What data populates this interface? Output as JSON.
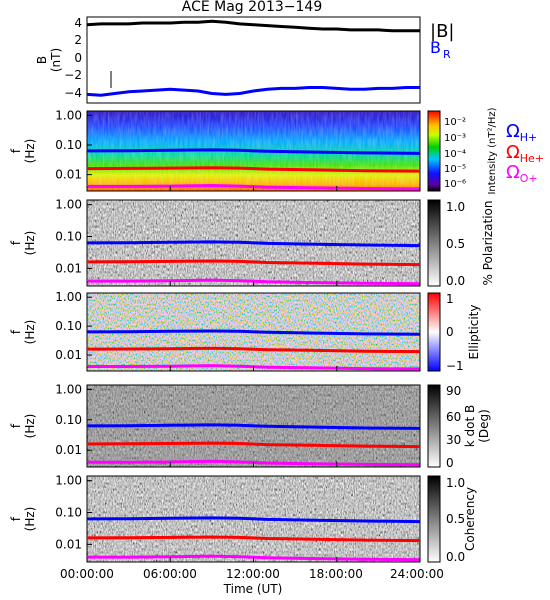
{
  "title": "ACE Mag 2013−149",
  "xlabel": "Time (UT)",
  "x_ticks": [
    "00:00:00",
    "06:00:00",
    "12:00:00",
    "18:00:00",
    "24:00:00"
  ],
  "chart_data": [
    {
      "type": "line",
      "panel": "B",
      "ylabel_main": "B",
      "ylabel_unit": "(nT)",
      "ylim": [
        -5,
        5
      ],
      "y_ticks": [
        "4",
        "2",
        "0",
        "−2",
        "−4"
      ],
      "x_range_hours": [
        0,
        24
      ],
      "series": [
        {
          "name": "|B|",
          "color": "#000000",
          "x": [
            0,
            1,
            2,
            3,
            4,
            5,
            6,
            7,
            8,
            9,
            10,
            11,
            12,
            13,
            14,
            15,
            16,
            17,
            18,
            19,
            20,
            21,
            22,
            23,
            24
          ],
          "values": [
            4.1,
            4.2,
            4.2,
            4.2,
            4.3,
            4.3,
            4.3,
            4.4,
            4.4,
            4.5,
            4.4,
            4.2,
            4.1,
            4.0,
            3.9,
            3.8,
            3.7,
            3.6,
            3.6,
            3.5,
            3.5,
            3.5,
            3.4,
            3.4,
            3.4
          ]
        },
        {
          "name": "B_R",
          "color": "#0000ff",
          "x": [
            0,
            1,
            2,
            3,
            4,
            5,
            6,
            7,
            8,
            9,
            10,
            11,
            12,
            13,
            14,
            15,
            16,
            17,
            18,
            19,
            20,
            21,
            22,
            23,
            24
          ],
          "values": [
            -4.0,
            -4.1,
            -3.9,
            -3.7,
            -3.6,
            -3.5,
            -3.4,
            -3.5,
            -3.6,
            -3.9,
            -4.0,
            -3.9,
            -3.6,
            -3.4,
            -3.3,
            -3.3,
            -3.2,
            -3.2,
            -3.3,
            -3.4,
            -3.4,
            -3.3,
            -3.3,
            -3.2,
            -3.2
          ]
        }
      ]
    },
    {
      "type": "heatmap",
      "panel": "intensity",
      "ylabel_main": "f",
      "ylabel_unit": "(Hz)",
      "y_ticks": [
        "1.00",
        "0.10",
        "0.01"
      ],
      "colorbar_label": "Intensity (nT²/Hz)",
      "colorbar_ticks": [
        "10⁻²",
        "10⁻³",
        "10⁻⁴",
        "10⁻⁵",
        "10⁻⁶"
      ]
    },
    {
      "type": "heatmap",
      "panel": "polarization",
      "ylabel_main": "f",
      "ylabel_unit": "(Hz)",
      "y_ticks": [
        "1.00",
        "0.10",
        "0.01"
      ],
      "colorbar_label": "% Polarization",
      "colorbar_ticks": [
        "1.0",
        "0.5",
        "0.0"
      ]
    },
    {
      "type": "heatmap",
      "panel": "ellipticity",
      "ylabel_main": "f",
      "ylabel_unit": "(Hz)",
      "y_ticks": [
        "1.00",
        "0.10",
        "0.01"
      ],
      "colorbar_label": "Ellipticity",
      "colorbar_ticks": [
        "1",
        "0",
        "−1"
      ]
    },
    {
      "type": "heatmap",
      "panel": "kdotb",
      "ylabel_main": "f",
      "ylabel_unit": "(Hz)",
      "y_ticks": [
        "1.00",
        "0.10",
        "0.01"
      ],
      "colorbar_label_1": "k dot B",
      "colorbar_label_2": "(Deg)",
      "colorbar_ticks": [
        "90",
        "60",
        "30",
        "0"
      ]
    },
    {
      "type": "heatmap",
      "panel": "coherency",
      "ylabel_main": "f",
      "ylabel_unit": "(Hz)",
      "y_ticks": [
        "1.00",
        "0.10",
        "0.01"
      ],
      "colorbar_label": "Coherency",
      "colorbar_ticks": [
        "1.0",
        "0.5",
        "0.0"
      ]
    }
  ],
  "gyrofrequency_lines": [
    {
      "name": "ΩH+",
      "sym": "Ω",
      "sub": "H+",
      "color": "#0000ff",
      "x": [
        0,
        3,
        6,
        9,
        11,
        13,
        16,
        20,
        24
      ],
      "values": [
        0.063,
        0.064,
        0.066,
        0.068,
        0.066,
        0.061,
        0.058,
        0.054,
        0.052
      ]
    },
    {
      "name": "ΩHe+",
      "sym": "Ω",
      "sub": "He+",
      "color": "#ff0000",
      "x": [
        0,
        3,
        6,
        9,
        11,
        13,
        16,
        20,
        24
      ],
      "values": [
        0.016,
        0.0162,
        0.0166,
        0.0171,
        0.0166,
        0.0153,
        0.0146,
        0.0136,
        0.0131
      ]
    },
    {
      "name": "ΩO+",
      "sym": "Ω",
      "sub": "O+",
      "color": "#ff00ff",
      "x": [
        0,
        3,
        6,
        9,
        11,
        13,
        16,
        20,
        24
      ],
      "values": [
        0.004,
        0.004,
        0.0041,
        0.0043,
        0.0041,
        0.0038,
        0.0036,
        0.0034,
        0.0033
      ]
    }
  ],
  "legend_b": [
    {
      "label": "|B|",
      "color": "#000000",
      "sub": ""
    },
    {
      "label": "B",
      "color": "#0000ff",
      "sub": "R"
    }
  ]
}
